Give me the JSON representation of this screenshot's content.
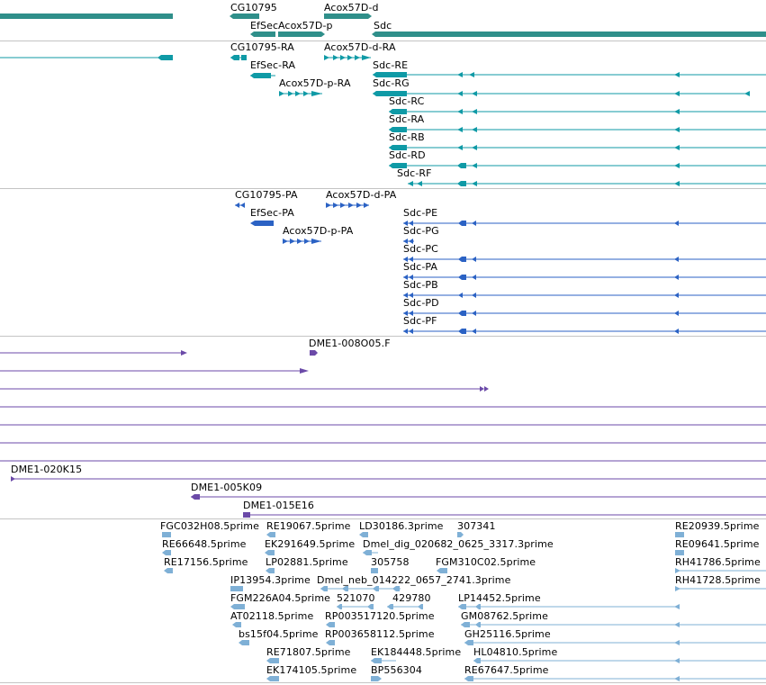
{
  "colors": {
    "gene_teal": "#2f8f8a",
    "transcript_teal": "#0f9aa6",
    "cds_blue": "#2b62c4",
    "clone_purple": "#6b4aa8",
    "est_lightblue": "#7fb0d6",
    "separator": "#c4c4c4"
  },
  "tracks": {
    "genes": {
      "labels": [
        "CG10795",
        "Acox57D-d",
        "EfSec",
        "Acox57D-p",
        "Sdc"
      ]
    },
    "transcripts": {
      "labels": [
        "CG10795-RA",
        "Acox57D-d-RA",
        "EfSec-RA",
        "Sdc-RE",
        "Acox57D-p-RA",
        "Sdc-RG",
        "Sdc-RC",
        "Sdc-RA",
        "Sdc-RB",
        "Sdc-RD",
        "Sdc-RF"
      ]
    },
    "proteins": {
      "labels": [
        "CG10795-PA",
        "Acox57D-d-PA",
        "EfSec-PA",
        "Sdc-PE",
        "Acox57D-p-PA",
        "Sdc-PG",
        "Sdc-PC",
        "Sdc-PA",
        "Sdc-PB",
        "Sdc-PD",
        "Sdc-PF"
      ]
    },
    "clones": {
      "labels": [
        "DME1-008O05.F",
        "DME1-020K15",
        "DME1-005K09",
        "DME1-015E16"
      ]
    },
    "ests": {
      "labels": [
        "FGC032H08.5prime",
        "RE19067.5prime",
        "LD30186.3prime",
        "307341",
        "RE20939.5prime",
        "RE66648.5prime",
        "EK291649.5prime",
        "Dmel_dig_020682_0625_3317.3prime",
        "RE09641.5prime",
        "RE17156.5prime",
        "LP02881.5prime",
        "305758",
        "FGM310C02.5prime",
        "RH41786.5prime",
        "IP13954.3prime",
        "Dmel_neb_014222_0657_2741.3prime",
        "RH41728.5prime",
        "FGM226A04.5prime",
        "521070",
        "429780",
        "LP14452.5prime",
        "AT02118.5prime",
        "RP003517120.5prime",
        "GM08762.5prime",
        "bs15f04.5prime",
        "RP003658112.5prime",
        "GH25116.5prime",
        "RE71807.5prime",
        "EK184448.5prime",
        "HL04810.5prime",
        "EK174105.5prime",
        "BP556304",
        "RE67647.5prime"
      ]
    }
  }
}
